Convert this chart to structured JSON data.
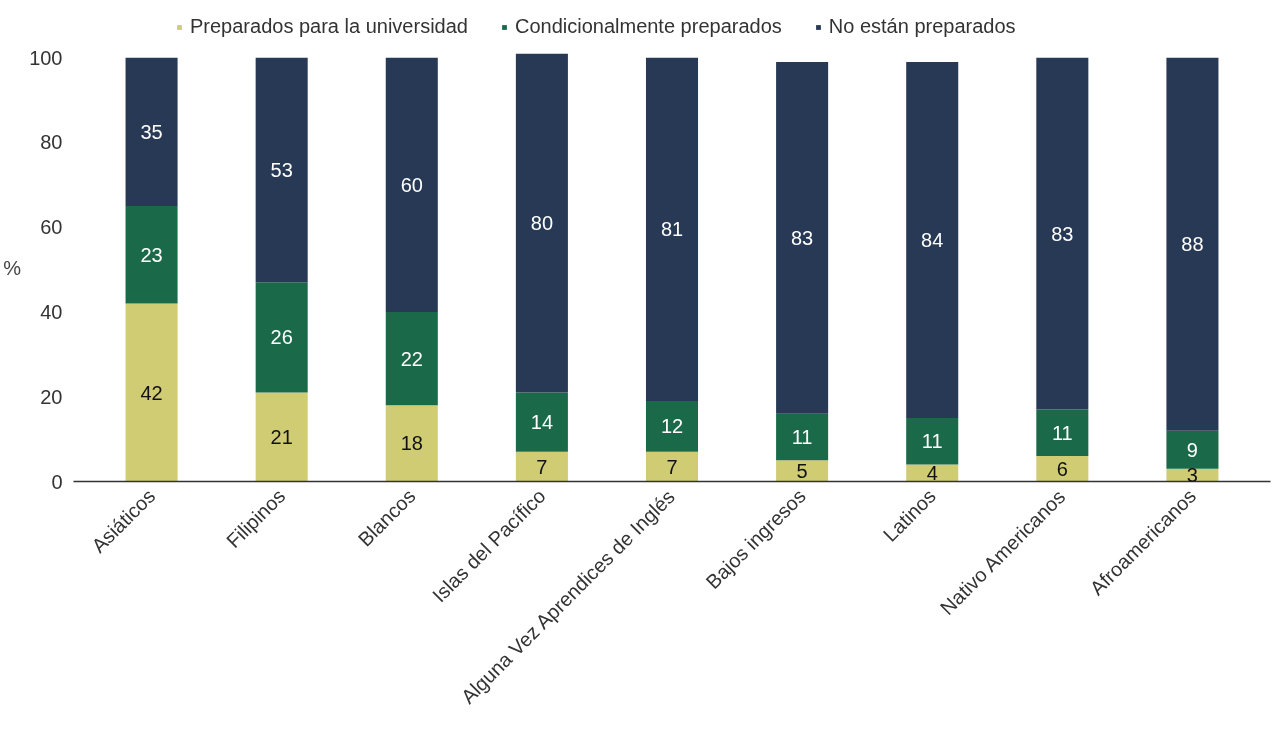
{
  "chart_data": {
    "type": "bar",
    "stacked": true,
    "ylabel": "%",
    "categories": [
      "Asiáticos",
      "Filipinos",
      "Blancos",
      "Islas del Pacífico",
      "Alguna Vez Aprendices de Inglés",
      "Bajos ingresos",
      "Latinos",
      "Nativo Americanos",
      "Afroamericanos"
    ],
    "series": [
      {
        "name": "Preparados para la universidad",
        "color": "#cfcc74",
        "values": [
          42,
          21,
          18,
          7,
          7,
          5,
          4,
          6,
          3
        ]
      },
      {
        "name": "Condicionalmente preparados",
        "color": "#1a6a4a",
        "values": [
          23,
          26,
          22,
          14,
          12,
          11,
          11,
          11,
          9
        ]
      },
      {
        "name": "No están preparados",
        "color": "#283955",
        "values": [
          35,
          53,
          60,
          80,
          81,
          83,
          84,
          83,
          88
        ]
      }
    ],
    "ylim": [
      0,
      101
    ],
    "yticks": [
      0,
      20,
      40,
      60,
      80,
      100
    ],
    "grid": false,
    "legend": "top",
    "data_labels": true
  }
}
